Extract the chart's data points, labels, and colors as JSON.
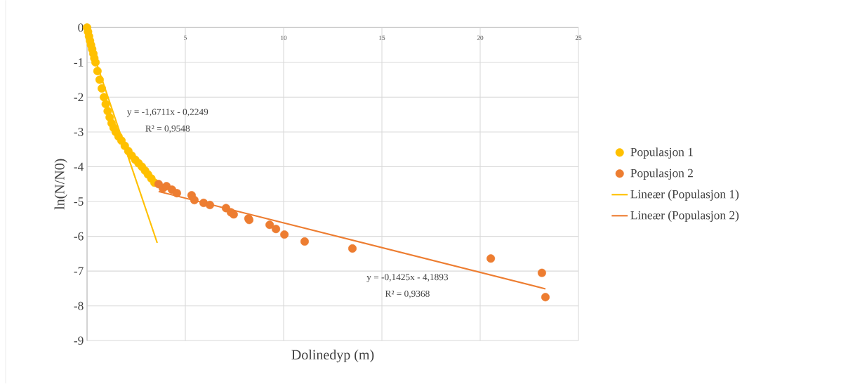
{
  "chart_data": {
    "type": "scatter",
    "xlabel": "Dolinedyp (m)",
    "ylabel": "ln(N/N0)",
    "xlim": [
      0,
      25
    ],
    "xticks": [
      0,
      5,
      10,
      15,
      20,
      25
    ],
    "ylim": [
      -9,
      0
    ],
    "yticks": [
      0,
      -1,
      -2,
      -3,
      -4,
      -5,
      -6,
      -7,
      -8,
      -9
    ],
    "grid": true,
    "legend": "right",
    "series": [
      {
        "name": "Populasjon 1",
        "marker": "circle",
        "color": "#ffc000",
        "x": [
          0,
          0.05,
          0.1,
          0.15,
          0.2,
          0.26,
          0.32,
          0.37,
          0.43,
          0.53,
          0.64,
          0.75,
          0.86,
          0.95,
          1.05,
          1.15,
          1.25,
          1.35,
          1.46,
          1.6,
          1.75,
          1.92,
          2.1,
          2.27,
          2.45,
          2.62,
          2.79,
          2.95,
          3.1,
          3.27,
          3.43
        ],
        "values": [
          0,
          -0.12,
          -0.25,
          -0.38,
          -0.5,
          -0.62,
          -0.75,
          -0.88,
          -1,
          -1.25,
          -1.5,
          -1.75,
          -2,
          -2.2,
          -2.4,
          -2.58,
          -2.75,
          -2.88,
          -3,
          -3.13,
          -3.25,
          -3.4,
          -3.55,
          -3.68,
          -3.8,
          -3.9,
          -4.0,
          -4.11,
          -4.22,
          -4.34,
          -4.46
        ]
      },
      {
        "name": "Populasjon 2",
        "marker": "circle",
        "color": "#ed7d31",
        "x": [
          3.64,
          3.86,
          4.04,
          4.32,
          4.57,
          5.32,
          5.46,
          5.93,
          6.25,
          7.07,
          7.32,
          7.46,
          8.21,
          8.25,
          9.29,
          9.61,
          10.04,
          11.07,
          13.5,
          20.54,
          23.14,
          23.32
        ],
        "values": [
          -4.5,
          -4.62,
          -4.56,
          -4.66,
          -4.76,
          -4.82,
          -4.96,
          -5.04,
          -5.1,
          -5.19,
          -5.31,
          -5.37,
          -5.49,
          -5.53,
          -5.67,
          -5.79,
          -5.95,
          -6.15,
          -6.35,
          -6.64,
          -7.05,
          -7.75
        ]
      },
      {
        "name": "Lineær (Populasjon 1)",
        "type": "line",
        "marker": "none",
        "color": "#ffc000",
        "x": [
          0,
          3.57
        ],
        "values": [
          -0.22,
          -6.19
        ]
      },
      {
        "name": "Lineær (Populasjon 2)",
        "type": "line",
        "marker": "none",
        "color": "#ed7d31",
        "x": [
          3.64,
          23.32
        ],
        "values": [
          -4.71,
          -7.51
        ]
      }
    ],
    "annotations": [
      "y = -1,6711x - 0,2249",
      "R² = 0,9548",
      "y = -0,1425x - 4,1893",
      "R² = 0,9368"
    ]
  }
}
